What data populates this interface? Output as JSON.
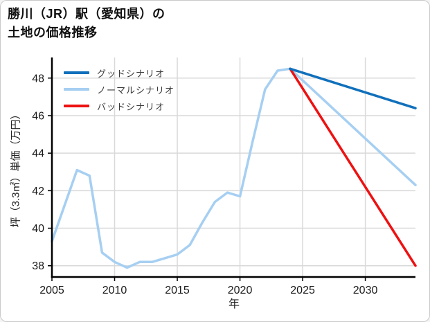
{
  "card": {
    "background": "#ffffff",
    "border_color": "#c9c9c9"
  },
  "title": {
    "line1": "勝川（JR）駅（愛知県）の",
    "line2": "土地の価格推移"
  },
  "chart_data": {
    "type": "line",
    "title": "勝川（JR）駅（愛知県）の土地の価格推移",
    "xlabel": "年",
    "ylabel": "坪（3.3㎡）単価（万円）",
    "xlim": [
      2005,
      2034
    ],
    "ylim": [
      37.4,
      49.1
    ],
    "xticks": [
      2005,
      2010,
      2015,
      2020,
      2025,
      2030
    ],
    "yticks": [
      38,
      40,
      42,
      44,
      46,
      48
    ],
    "grid": true,
    "grid_color": "#d9d9d9",
    "axis_color": "#000000",
    "tick_label_color": "#1a1a1a",
    "legend_position": "upper-left-inside",
    "series": [
      {
        "name": "グッドシナリオ",
        "color": "#1170bb",
        "x": [
          2024,
          2034
        ],
        "values": [
          48.5,
          46.4
        ]
      },
      {
        "name": "ノーマルシナリオ",
        "color": "#a6cff2",
        "x": [
          2005,
          2006,
          2007,
          2008,
          2009,
          2010,
          2011,
          2012,
          2013,
          2014,
          2015,
          2016,
          2017,
          2018,
          2019,
          2020,
          2021,
          2022,
          2023,
          2024,
          2034
        ],
        "values": [
          39.3,
          41.2,
          43.1,
          42.8,
          38.7,
          38.2,
          37.9,
          38.2,
          38.2,
          38.4,
          38.6,
          39.1,
          40.3,
          41.4,
          41.9,
          41.7,
          44.6,
          47.4,
          48.4,
          48.5,
          42.3
        ]
      },
      {
        "name": "バッドシナリオ",
        "color": "#ee1111",
        "x": [
          2024,
          2034
        ],
        "values": [
          48.5,
          38.0
        ]
      }
    ]
  }
}
